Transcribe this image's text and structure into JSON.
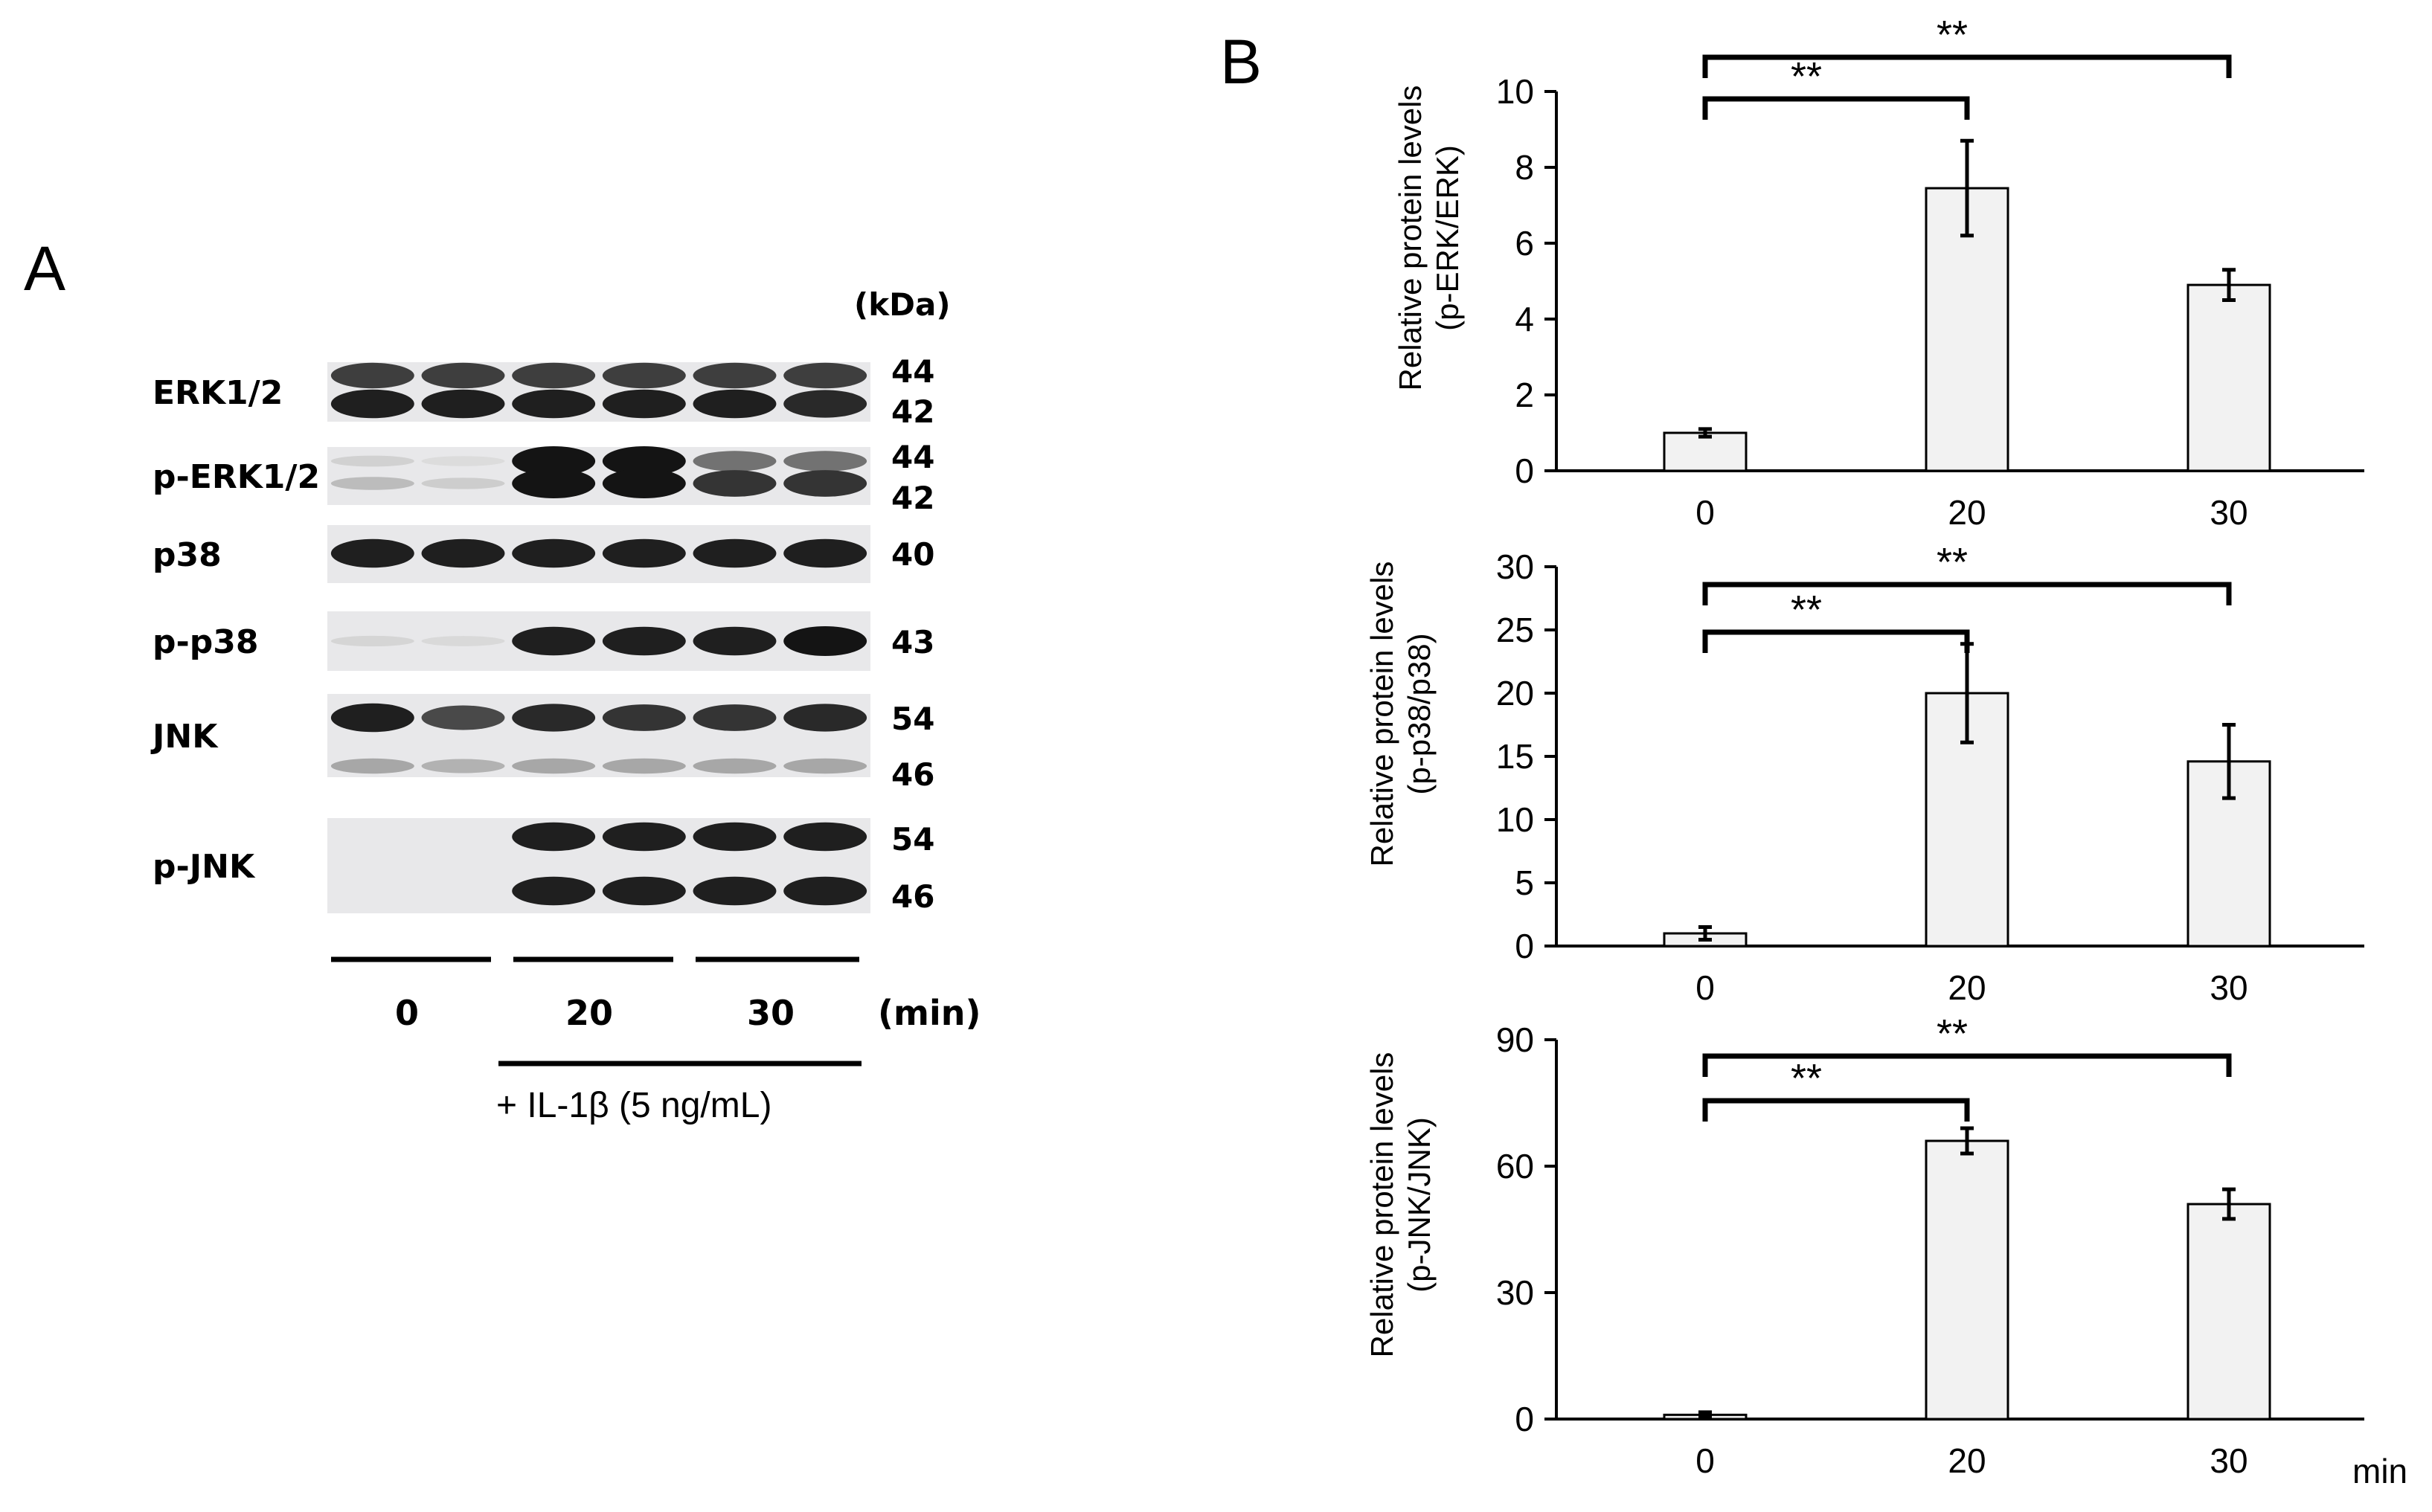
{
  "panel_a": {
    "letter": "A",
    "kda_header": "(kDa)",
    "blots": [
      {
        "label": "ERK1/2",
        "mw": [
          "44",
          "42"
        ],
        "bands": [
          [
            0.8,
            0.8,
            0.8,
            0.8,
            0.8,
            0.8
          ],
          [
            0.95,
            0.95,
            0.95,
            0.95,
            0.95,
            0.9
          ]
        ]
      },
      {
        "label": "p-ERK1/2",
        "mw": [
          "44",
          "42"
        ],
        "bands": [
          [
            0.1,
            0.05,
            1.0,
            1.0,
            0.55,
            0.55
          ],
          [
            0.2,
            0.12,
            1.0,
            1.0,
            0.85,
            0.85
          ]
        ]
      },
      {
        "label": "p38",
        "mw": [
          "40"
        ],
        "bands": [
          [
            0.95,
            0.95,
            0.95,
            0.95,
            0.95,
            0.95
          ]
        ]
      },
      {
        "label": "p-p38",
        "mw": [
          "43"
        ],
        "bands": [
          [
            0.08,
            0.06,
            0.95,
            0.95,
            0.95,
            1.0
          ]
        ]
      },
      {
        "label": "JNK",
        "mw": [
          "54",
          "46"
        ],
        "bands": [
          [
            0.95,
            0.75,
            0.9,
            0.85,
            0.85,
            0.9
          ],
          [
            0.3,
            0.25,
            0.3,
            0.3,
            0.3,
            0.3
          ]
        ]
      },
      {
        "label": "p-JNK",
        "mw": [
          "54",
          "46"
        ],
        "bands": [
          [
            0.0,
            0.0,
            0.95,
            0.95,
            0.95,
            0.95
          ],
          [
            0.0,
            0.0,
            0.95,
            0.95,
            0.95,
            0.95
          ]
        ]
      }
    ],
    "time_labels": [
      "0",
      "20",
      "30"
    ],
    "time_unit": "(min)",
    "treatment": "+ IL-1β (5 ng/mL)"
  },
  "panel_b": {
    "letter": "B",
    "x_unit": "min"
  },
  "chart_data": [
    {
      "type": "bar",
      "categories": [
        "0",
        "20",
        "30"
      ],
      "values": [
        1.0,
        7.45,
        4.9
      ],
      "errors": [
        0.1,
        1.25,
        0.4
      ],
      "ylabel": [
        "Relative protein levels",
        "(p-ERK/ERK)"
      ],
      "ylim": [
        0,
        10
      ],
      "yticks": [
        "0",
        "2",
        "4",
        "6",
        "8",
        "10"
      ],
      "significance": [
        {
          "from": "0",
          "to": "20",
          "label": "**"
        },
        {
          "from": "0",
          "to": "30",
          "label": "**"
        }
      ],
      "bar_color": "#f2f2f2",
      "grid": false
    },
    {
      "type": "bar",
      "categories": [
        "0",
        "20",
        "30"
      ],
      "values": [
        1.0,
        20.0,
        14.6
      ],
      "errors": [
        0.5,
        3.9,
        2.9
      ],
      "ylabel": [
        "Relative protein levels",
        "(p-p38/p38)"
      ],
      "ylim": [
        0,
        30
      ],
      "yticks": [
        "0",
        "5",
        "10",
        "15",
        "20",
        "25",
        "30"
      ],
      "significance": [
        {
          "from": "0",
          "to": "20",
          "label": "**"
        },
        {
          "from": "0",
          "to": "30",
          "label": "**"
        }
      ],
      "bar_color": "#f2f2f2",
      "grid": false
    },
    {
      "type": "bar",
      "categories": [
        "0",
        "20",
        "30"
      ],
      "values": [
        1.0,
        66.0,
        51.0
      ],
      "errors": [
        0.6,
        3.0,
        3.5
      ],
      "ylabel": [
        "Relative protein levels",
        "(p-JNK/JNK)"
      ],
      "ylim": [
        0,
        90
      ],
      "yticks": [
        "0",
        "30",
        "60",
        "90"
      ],
      "significance": [
        {
          "from": "0",
          "to": "20",
          "label": "**"
        },
        {
          "from": "0",
          "to": "30",
          "label": "**"
        }
      ],
      "bar_color": "#f2f2f2",
      "grid": false
    }
  ]
}
